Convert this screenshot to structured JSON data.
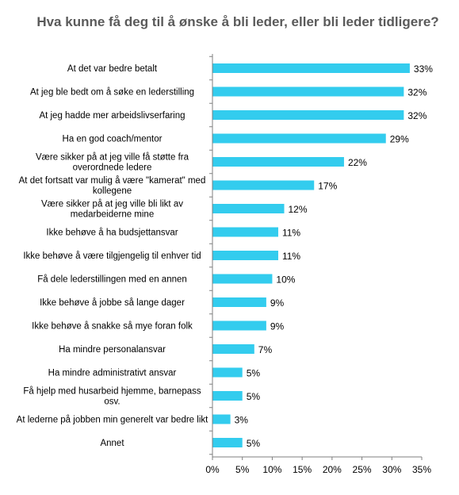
{
  "chart_data": {
    "type": "bar",
    "orientation": "horizontal",
    "title": "Hva kunne få deg til å ønske å bli leder, eller bli leder tidligere?",
    "categories": [
      "At det var bedre betalt",
      "At jeg ble bedt om å søke en lederstilling",
      "At jeg hadde mer arbeidslivserfaring",
      "Ha en god coach/mentor",
      "Være sikker på at jeg ville få støtte fra overordnede ledere",
      "At det fortsatt var mulig å være \"kamerat\" med kollegene",
      "Være sikker på at jeg ville bli likt av medarbeiderne mine",
      "Ikke behøve å ha budsjettansvar",
      "Ikke behøve å være tilgjengelig til enhver tid",
      "Få dele lederstillingen med en annen",
      "Ikke behøve å jobbe så lange dager",
      "Ikke behøve å snakke så mye foran folk",
      "Ha mindre personalansvar",
      "Ha mindre administrativt ansvar",
      "Få hjelp med husarbeid hjemme, barnepass osv.",
      "At lederne på jobben min generelt var bedre likt",
      "Annet"
    ],
    "values": [
      33,
      32,
      32,
      29,
      22,
      17,
      12,
      11,
      11,
      10,
      9,
      9,
      7,
      5,
      5,
      3,
      5
    ],
    "value_labels": [
      "33%",
      "32%",
      "32%",
      "29%",
      "22%",
      "17%",
      "12%",
      "11%",
      "11%",
      "10%",
      "9%",
      "9%",
      "7%",
      "5%",
      "5%",
      "3%",
      "5%"
    ],
    "xlim": [
      0,
      35
    ],
    "xticks": [
      0,
      5,
      10,
      15,
      20,
      25,
      30,
      35
    ],
    "xtick_labels": [
      "0%",
      "5%",
      "10%",
      "15%",
      "20%",
      "25%",
      "30%",
      "35%"
    ],
    "grid": false,
    "legend": "none",
    "bar_color": "#33ccee"
  }
}
